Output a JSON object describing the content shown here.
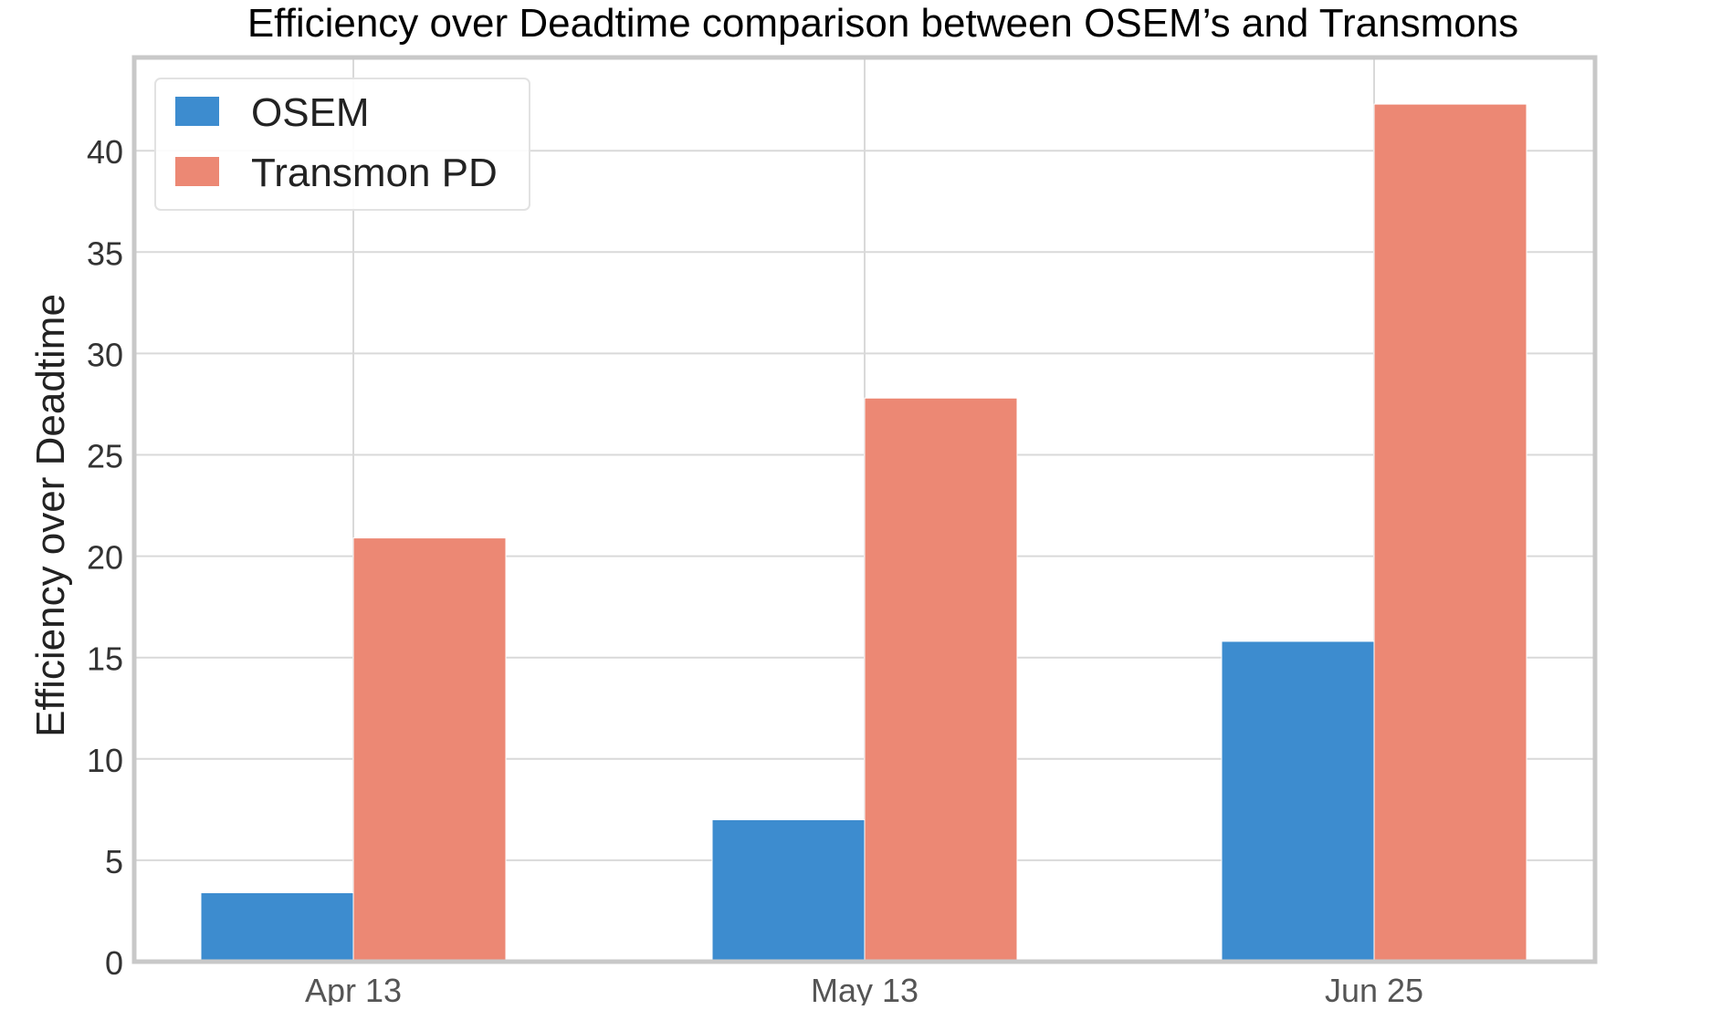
{
  "chart_data": {
    "type": "bar",
    "title": "Efficiency over Deadtime comparison between OSEM’s and Transmons",
    "xlabel": "",
    "ylabel": "Efficiency over Deadtime",
    "categories": [
      "Apr 13",
      "May 13",
      "Jun 25"
    ],
    "series": [
      {
        "name": "OSEM",
        "values": [
          3.4,
          7.0,
          15.8
        ],
        "color": "#3d8ccf"
      },
      {
        "name": "Transmon PD",
        "values": [
          20.9,
          27.8,
          42.3
        ],
        "color": "#ec8874"
      }
    ],
    "ylim": [
      0,
      44.6
    ],
    "yticks": [
      0,
      5,
      10,
      15,
      20,
      25,
      30,
      35,
      40
    ],
    "grid": true,
    "legend_position": "top-left"
  }
}
